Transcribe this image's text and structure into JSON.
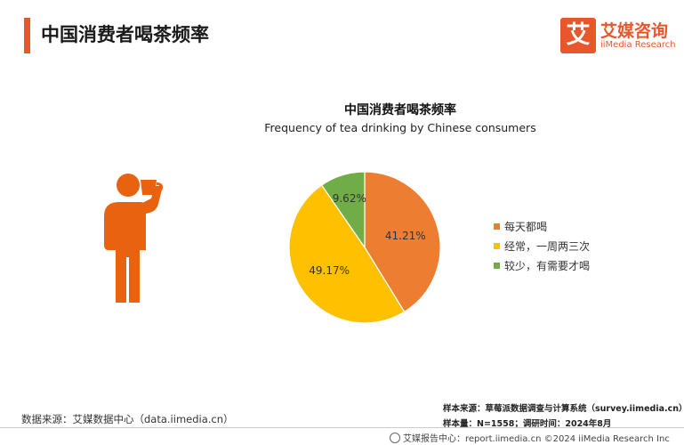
{
  "header": {
    "title": "中国消费者喝茶频率",
    "logo": {
      "mark": "艾",
      "name_cn": "艾媒咨询",
      "name_en": "iiMedia Research"
    }
  },
  "chart_data": {
    "type": "pie",
    "title": "中国消费者喝茶频率",
    "subtitle": "Frequency of tea drinking by Chinese consumers",
    "categories": [
      "每天都喝",
      "经常，一周两三次",
      "较少，有需要才喝"
    ],
    "values": [
      41.21,
      49.17,
      9.62
    ],
    "value_labels": [
      "41.21%",
      "49.17%",
      "9.62%"
    ],
    "colors": [
      "#ed7d31",
      "#ffc000",
      "#70ad47"
    ],
    "legend_position": "right",
    "start_angle": "12 o'clock, clockwise"
  },
  "illustration": {
    "icon": "person-drinking-tea-icon",
    "color": "#e8620f"
  },
  "source": {
    "left": "数据来源：艾媒数据中心（data.iimedia.cn）",
    "sample_source": "样本来源：草莓派数据调查与计算系统（survey.iimedia.cn）",
    "sample_info": "样本量：N=1558；调研时间：2024年8月"
  },
  "footer": {
    "text": "艾媒报告中心：report.iimedia.cn   ©2024  iiMedia Research  Inc"
  },
  "colors": {
    "accent": "#e8572b"
  }
}
